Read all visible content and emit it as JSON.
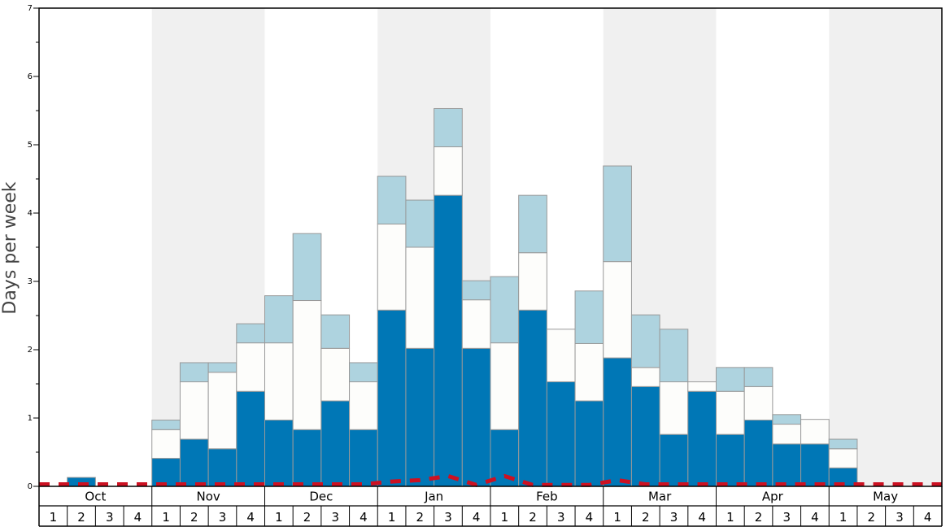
{
  "chart_data": {
    "type": "bar",
    "stacked": true,
    "ylabel": "Days per week",
    "ylim": [
      0,
      7
    ],
    "yticks": [
      "0",
      "1",
      "2",
      "3",
      "4",
      "5",
      "6",
      "7"
    ],
    "months": [
      "Oct",
      "Nov",
      "Dec",
      "Jan",
      "Feb",
      "Mar",
      "Apr",
      "May"
    ],
    "week_labels": [
      "1",
      "2",
      "3",
      "4"
    ],
    "shaded_months": [
      "Nov",
      "Jan",
      "Mar",
      "May"
    ],
    "colors": {
      "series_1": "#0077b6",
      "series_2": "#fdfdfb",
      "series_3": "#aed3df",
      "line": "#cc1122",
      "shade": "#f0f0f0",
      "edge": "#999999"
    },
    "series": [
      {
        "values": [
          0,
          0.13,
          0,
          0,
          0.41,
          0.69,
          0.55,
          1.39,
          0.97,
          0.83,
          1.25,
          0.83,
          2.58,
          2.02,
          4.26,
          2.02,
          0.83,
          2.58,
          1.53,
          1.25,
          1.88,
          1.46,
          0.76,
          1.39,
          0.76,
          0.97,
          0.62,
          0.62,
          0.27,
          0,
          0,
          0
        ]
      },
      {
        "values": [
          0,
          0,
          0,
          0,
          0.42,
          0.84,
          1.12,
          0.71,
          1.13,
          1.89,
          0.77,
          0.7,
          1.26,
          1.48,
          0.71,
          0.71,
          1.27,
          0.84,
          0.77,
          0.84,
          1.41,
          0.28,
          0.77,
          0.14,
          0.63,
          0.49,
          0.29,
          0.36,
          0.28,
          0,
          0,
          0
        ]
      },
      {
        "values": [
          0,
          0,
          0,
          0,
          0.14,
          0.28,
          0.14,
          0.28,
          0.69,
          0.98,
          0.49,
          0.28,
          0.7,
          0.69,
          0.56,
          0.28,
          0.97,
          0.84,
          0,
          0.77,
          1.4,
          0.77,
          0.77,
          0,
          0.35,
          0.28,
          0.14,
          0,
          0.14,
          0,
          0,
          0
        ]
      },
      {
        "type": "line",
        "values": [
          0.03,
          0.03,
          0.03,
          0.03,
          0.03,
          0.03,
          0.03,
          0.03,
          0.03,
          0.03,
          0.03,
          0.03,
          0.07,
          0.09,
          0.15,
          0.02,
          0.15,
          0.02,
          0.02,
          0.02,
          0.09,
          0.03,
          0.03,
          0.03,
          0.03,
          0.03,
          0.03,
          0.03,
          0.03,
          0.03,
          0.03,
          0.03
        ]
      }
    ]
  }
}
